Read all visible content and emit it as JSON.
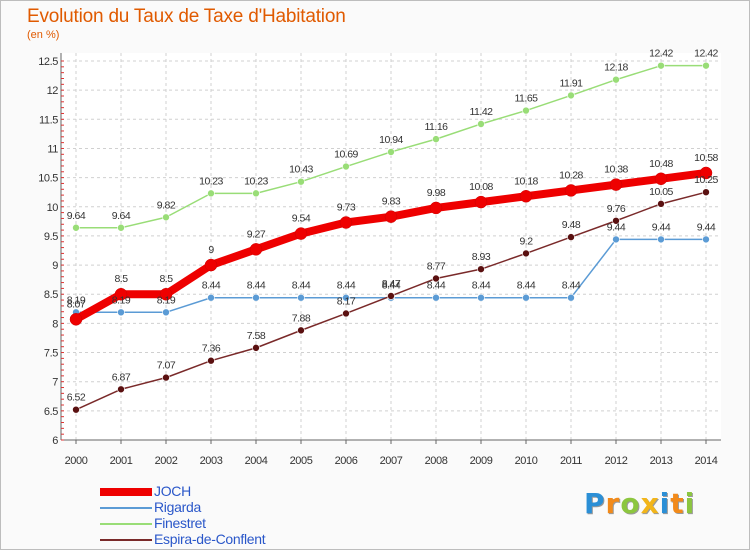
{
  "title": "Evolution du Taux de Taxe d'Habitation",
  "subtitle": "(en %)",
  "logo": {
    "text": "Proxiti",
    "letters": [
      {
        "ch": "P",
        "color": "#2b8fd6"
      },
      {
        "ch": "r",
        "color": "#f28a1a"
      },
      {
        "ch": "o",
        "color": "#8cc63f"
      },
      {
        "ch": "x",
        "color": "#f2b51a"
      },
      {
        "ch": "i",
        "color": "#2b8fd6"
      },
      {
        "ch": "t",
        "color": "#f28a1a"
      },
      {
        "ch": "i",
        "color": "#8cc63f"
      }
    ]
  },
  "chart_data": {
    "type": "line",
    "x": [
      2000,
      2001,
      2002,
      2003,
      2004,
      2005,
      2006,
      2007,
      2008,
      2009,
      2010,
      2011,
      2012,
      2013,
      2014
    ],
    "ylim": [
      6,
      12.5
    ],
    "yticks": [
      6,
      6.5,
      7,
      7.5,
      8,
      8.5,
      9,
      9.5,
      10,
      10.5,
      11,
      11.5,
      12,
      12.5
    ],
    "ytick_labels": [
      "6",
      "6.5",
      "7",
      "7.5",
      "8",
      "8.5",
      "9",
      "9.5",
      "10",
      "10.5",
      "11",
      "11.5",
      "12",
      "12.5"
    ],
    "grid": true,
    "legend": "bottom-left",
    "series": [
      {
        "name": "JOCH",
        "color": "#ee0000",
        "values": [
          8.07,
          8.5,
          8.5,
          9,
          9.27,
          9.54,
          9.73,
          9.83,
          9.98,
          10.08,
          10.18,
          10.28,
          10.38,
          10.48,
          10.58
        ],
        "labels": [
          "8.07",
          "8.5",
          "8.5",
          "9",
          "9.27",
          "9.54",
          "9.73",
          "9.83",
          "9.98",
          "10.08",
          "10.18",
          "10.28",
          "10.38",
          "10.48",
          "10.58"
        ]
      },
      {
        "name": "Rigarda",
        "color": "#5b9bd5",
        "values": [
          8.19,
          8.19,
          8.19,
          8.44,
          8.44,
          8.44,
          8.44,
          8.44,
          8.44,
          8.44,
          8.44,
          8.44,
          9.44,
          9.44,
          9.44
        ],
        "labels": [
          "8.19",
          "8.19",
          "8.19",
          "8.44",
          "8.44",
          "8.44",
          "8.44",
          "8.44",
          "8.44",
          "8.44",
          "8.44",
          "8.44",
          "9.44",
          "9.44",
          "9.44"
        ]
      },
      {
        "name": "Finestret",
        "color": "#99dd77",
        "values": [
          9.64,
          9.64,
          9.82,
          10.23,
          10.23,
          10.43,
          10.69,
          10.94,
          11.16,
          11.42,
          11.65,
          11.91,
          12.18,
          12.42,
          12.42
        ],
        "labels": [
          "9.64",
          "9.64",
          "9.82",
          "10.23",
          "10.23",
          "10.43",
          "10.69",
          "10.94",
          "11.16",
          "11.42",
          "11.65",
          "11.91",
          "12.18",
          "12.42",
          "12.42"
        ]
      },
      {
        "name": "Espira-de-Conflent",
        "color": "#7a2a2a",
        "values": [
          6.52,
          6.87,
          7.07,
          7.36,
          7.58,
          7.88,
          8.17,
          8.47,
          8.77,
          8.93,
          9.2,
          9.48,
          9.76,
          10.05,
          10.25
        ],
        "labels": [
          "6.52",
          "6.87",
          "7.07",
          "7.36",
          "7.58",
          "7.88",
          "8.17",
          "8.47",
          "8.77",
          "8.93",
          "9.2",
          "9.48",
          "9.76",
          "10.05",
          "10.25"
        ]
      }
    ]
  }
}
